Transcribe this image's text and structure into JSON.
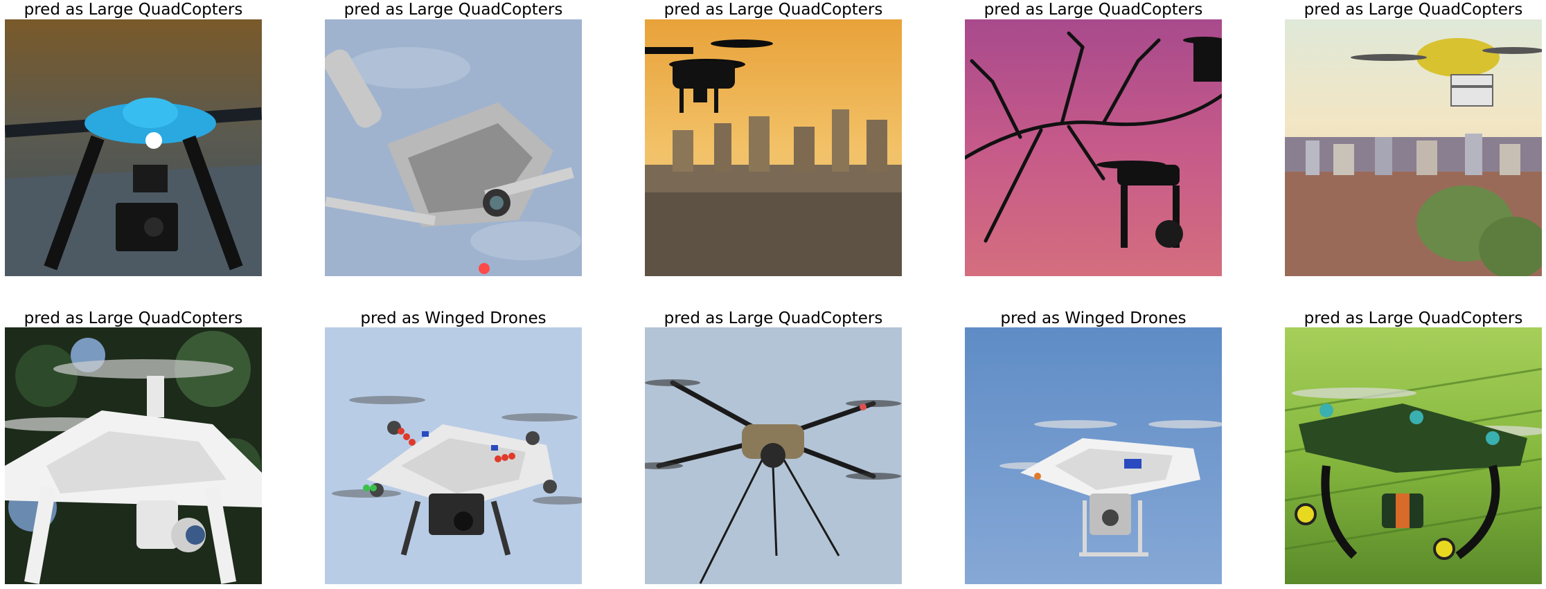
{
  "panels": [
    {
      "title": "pred as Large QuadCopters",
      "scene": "blue-drone-camera-closeup"
    },
    {
      "title": "pred as Large QuadCopters",
      "scene": "grey-folding-drone-sky"
    },
    {
      "title": "pred as Large QuadCopters",
      "scene": "drone-silhouette-sunset-city"
    },
    {
      "title": "pred as Large QuadCopters",
      "scene": "drone-silhouettes-branches-pink-sky"
    },
    {
      "title": "pred as Large QuadCopters",
      "scene": "delivery-drone-over-city"
    },
    {
      "title": "pred as Large QuadCopters",
      "scene": "white-drone-closeup-trees"
    },
    {
      "title": "pred as Winged Drones",
      "scene": "white-drone-led-lights-sky"
    },
    {
      "title": "pred as Large QuadCopters",
      "scene": "tan-drone-long-legs-sky"
    },
    {
      "title": "pred as Winged Drones",
      "scene": "white-drone-blue-sky"
    },
    {
      "title": "pred as Large QuadCopters",
      "scene": "green-drone-over-field"
    }
  ]
}
